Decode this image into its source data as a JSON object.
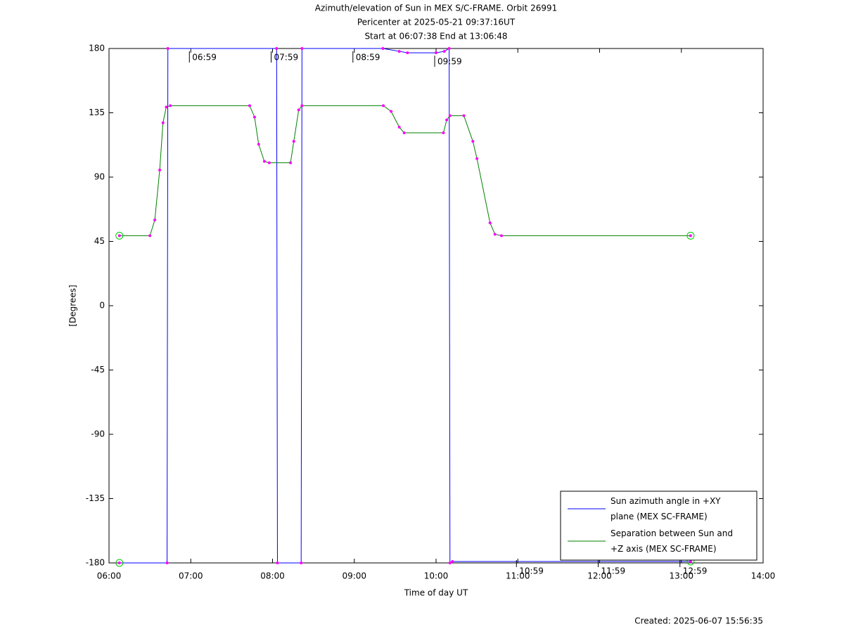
{
  "chart_data": {
    "type": "line",
    "title": [
      "Azimuth/elevation of Sun in MEX S/C-FRAME.  Orbit 26991",
      "Pericenter at 2025-05-21 09:37:16UT",
      "Start at 06:07:38 End at 13:06:48"
    ],
    "xlabel": "Time of day UT",
    "ylabel": "[Degrees]",
    "footer": "Created: 2025-06-07 15:56:35",
    "xlim": [
      6,
      14
    ],
    "xticks": [
      {
        "value": 6,
        "label": "06:00"
      },
      {
        "value": 7,
        "label": "07:00"
      },
      {
        "value": 8,
        "label": "08:00"
      },
      {
        "value": 9,
        "label": "09:00"
      },
      {
        "value": 10,
        "label": "10:00"
      },
      {
        "value": 11,
        "label": "11:00"
      },
      {
        "value": 12,
        "label": "12:00"
      },
      {
        "value": 13,
        "label": "13:00"
      },
      {
        "value": 14,
        "label": "14:00"
      }
    ],
    "ylim": [
      -180,
      180
    ],
    "yticks": [
      180,
      135,
      90,
      45,
      0,
      -45,
      -90,
      -135,
      -180
    ],
    "grid": false,
    "legend": "lower right",
    "series": [
      {
        "name": "Sun azimuth angle in +XY plane (MEX SC-FRAME)",
        "color": "#0000ff",
        "x": [
          6.127,
          6.71,
          6.72,
          8.05,
          8.06,
          8.35,
          8.36,
          9.35,
          9.55,
          9.65,
          10.0,
          10.1,
          10.16,
          10.17,
          10.2,
          13.113
        ],
        "values": [
          -180,
          -180,
          180,
          180,
          -180,
          -180,
          180,
          180,
          178,
          177,
          177,
          178,
          180,
          -180,
          -179,
          -179
        ]
      },
      {
        "name": "Separation between Sun and +Z axis (MEX SC-FRAME)",
        "color": "#008000",
        "x": [
          6.127,
          6.5,
          6.56,
          6.62,
          6.66,
          6.7,
          6.75,
          7.72,
          7.78,
          7.83,
          7.9,
          7.96,
          8.22,
          8.26,
          8.32,
          8.36,
          9.355,
          9.45,
          9.55,
          9.61,
          10.09,
          10.13,
          10.17,
          10.34,
          10.45,
          10.5,
          10.66,
          10.72,
          10.8,
          13.113
        ],
        "values": [
          49,
          49,
          60,
          95,
          128,
          139,
          140,
          140,
          132,
          113,
          101,
          100,
          100,
          115,
          137,
          140,
          140,
          136,
          125,
          121,
          121,
          130,
          133,
          133,
          115,
          103,
          58,
          50,
          49,
          49
        ]
      }
    ],
    "annotations": [
      {
        "text": "06:59",
        "x": 6.983,
        "y": 180
      },
      {
        "text": "07:59",
        "x": 7.983,
        "y": 180
      },
      {
        "text": "08:59",
        "x": 8.983,
        "y": 180
      },
      {
        "text": "09:59",
        "x": 9.983,
        "y": 177
      },
      {
        "text": "10:59",
        "x": 10.983,
        "y": -180
      },
      {
        "text": "11:59",
        "x": 11.983,
        "y": -180
      },
      {
        "text": "12:59",
        "x": 12.983,
        "y": -180
      }
    ]
  }
}
